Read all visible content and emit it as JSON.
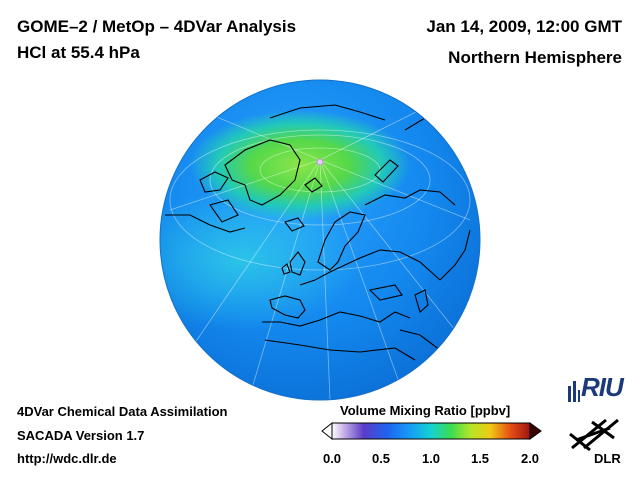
{
  "header": {
    "title_line1": "GOME–2 / MetOp – 4DVar Analysis",
    "title_line2": "HCl at 55.4 hPa",
    "date": "Jan 14, 2009, 12:00 GMT",
    "region": "Northern Hemisphere"
  },
  "footer": {
    "line1": "4DVar Chemical Data Assimilation",
    "line2": "SACADA Version 1.7",
    "line3": "http://wdc.dlr.de"
  },
  "colorbar": {
    "title": "Volume Mixing Ratio [ppbv]",
    "ticks": [
      "0.0",
      "0.5",
      "1.0",
      "1.5",
      "2.0"
    ],
    "range": [
      0.0,
      2.0
    ]
  },
  "logos": {
    "riu": "RIU",
    "dlr": "DLR"
  },
  "colors": {
    "ocean_field": "#0a7fe6",
    "field_high": "#66dd33",
    "field_mid": "#22c6c6",
    "coastline": "#000000"
  }
}
